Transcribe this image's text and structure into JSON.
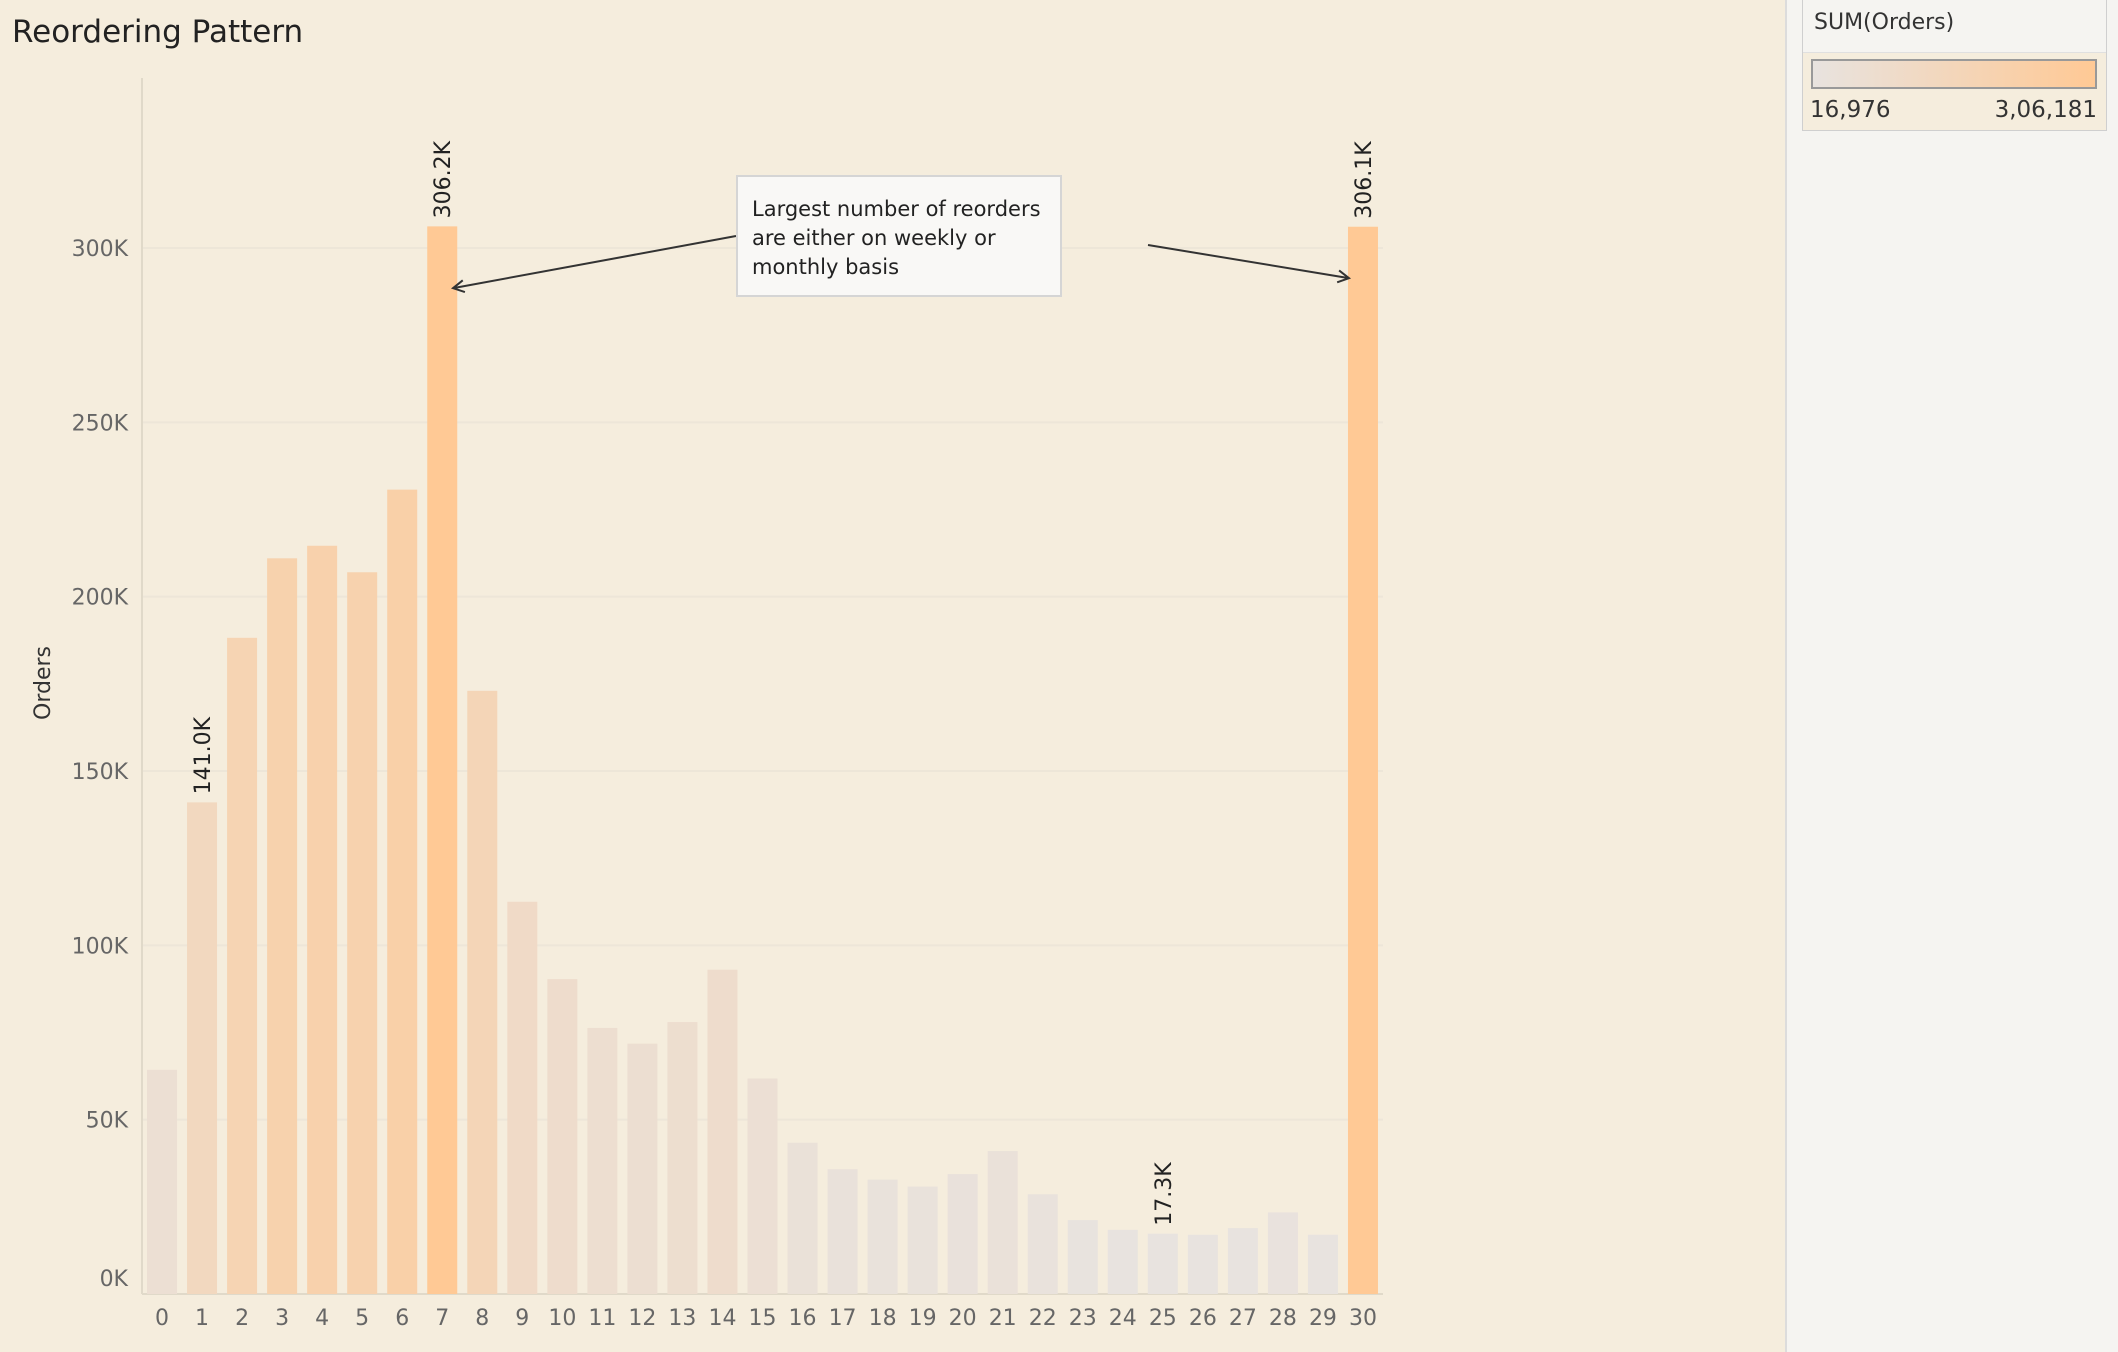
{
  "title": "Reordering Pattern",
  "annotation": {
    "text": "Largest number of reorders are either on weekly or monthly basis"
  },
  "legend": {
    "title": "SUM(Orders)",
    "min_label": "16,976",
    "max_label": "3,06,181",
    "color_low": "#e8e3df",
    "color_high": "#ffc995"
  },
  "colors": {
    "background": "#f5eddd",
    "gridline": "#ede6d8",
    "axis_text": "#666666",
    "arrow": "#333333"
  },
  "chart_data": {
    "type": "bar",
    "categories": [
      "0",
      "1",
      "2",
      "3",
      "4",
      "5",
      "6",
      "7",
      "8",
      "9",
      "10",
      "11",
      "12",
      "13",
      "14",
      "15",
      "16",
      "17",
      "18",
      "19",
      "20",
      "21",
      "22",
      "23",
      "24",
      "25",
      "26",
      "27",
      "28",
      "29",
      "30"
    ],
    "values": [
      64300,
      141000,
      188200,
      211000,
      214600,
      207000,
      230700,
      306200,
      173000,
      112500,
      90300,
      76300,
      71800,
      78000,
      93000,
      61800,
      43400,
      35800,
      32800,
      30800,
      34400,
      41000,
      28600,
      21200,
      18400,
      17300,
      16976,
      18900,
      23400,
      17000,
      306100
    ],
    "ylabel": "Orders",
    "xlabel": "",
    "ylim": [
      0,
      340000
    ],
    "yticks": [
      {
        "value": 0,
        "label": "0K"
      },
      {
        "value": 50000,
        "label": "50K"
      },
      {
        "value": 100000,
        "label": "100K"
      },
      {
        "value": 150000,
        "label": "150K"
      },
      {
        "value": 200000,
        "label": "200K"
      },
      {
        "value": 250000,
        "label": "250K"
      },
      {
        "value": 300000,
        "label": "300K"
      }
    ],
    "data_labels": [
      {
        "category": "1",
        "label": "141.0K"
      },
      {
        "category": "7",
        "label": "306.2K"
      },
      {
        "category": "25",
        "label": "17.3K"
      },
      {
        "category": "30",
        "label": "306.1K"
      }
    ],
    "grid": true
  }
}
